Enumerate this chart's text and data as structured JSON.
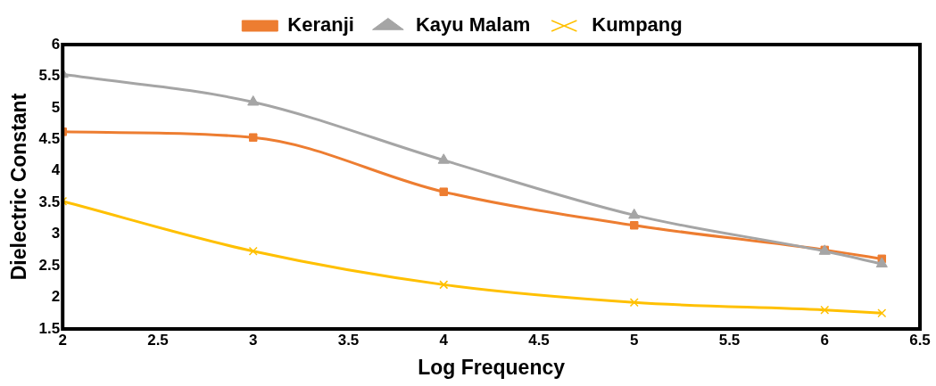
{
  "chart_data": {
    "type": "line",
    "xlabel": "Log Frequency",
    "ylabel": "Dielectric Constant",
    "x": [
      2,
      3,
      4,
      5,
      6,
      6.3
    ],
    "series": [
      {
        "name": "Keranji",
        "color": "#ed7d31",
        "marker": "square",
        "values": [
          4.62,
          4.53,
          3.67,
          3.14,
          2.75,
          2.61
        ]
      },
      {
        "name": "Kayu Malam",
        "color": "#a5a5a5",
        "marker": "triangle",
        "values": [
          5.53,
          5.09,
          4.17,
          3.3,
          2.73,
          2.53
        ]
      },
      {
        "name": "Kumpang",
        "color": "#ffc000",
        "marker": "cross",
        "values": [
          3.52,
          2.73,
          2.2,
          1.92,
          1.8,
          1.75
        ]
      }
    ],
    "xlim": [
      2,
      6.5
    ],
    "xticks": [
      2,
      2.5,
      3,
      3.5,
      4,
      4.5,
      5,
      5.5,
      6,
      6.5
    ],
    "ylim": [
      1.5,
      6
    ],
    "yticks": [
      1.5,
      2,
      2.5,
      3,
      3.5,
      4,
      4.5,
      5,
      5.5,
      6
    ],
    "grid": false,
    "legend": "top"
  }
}
